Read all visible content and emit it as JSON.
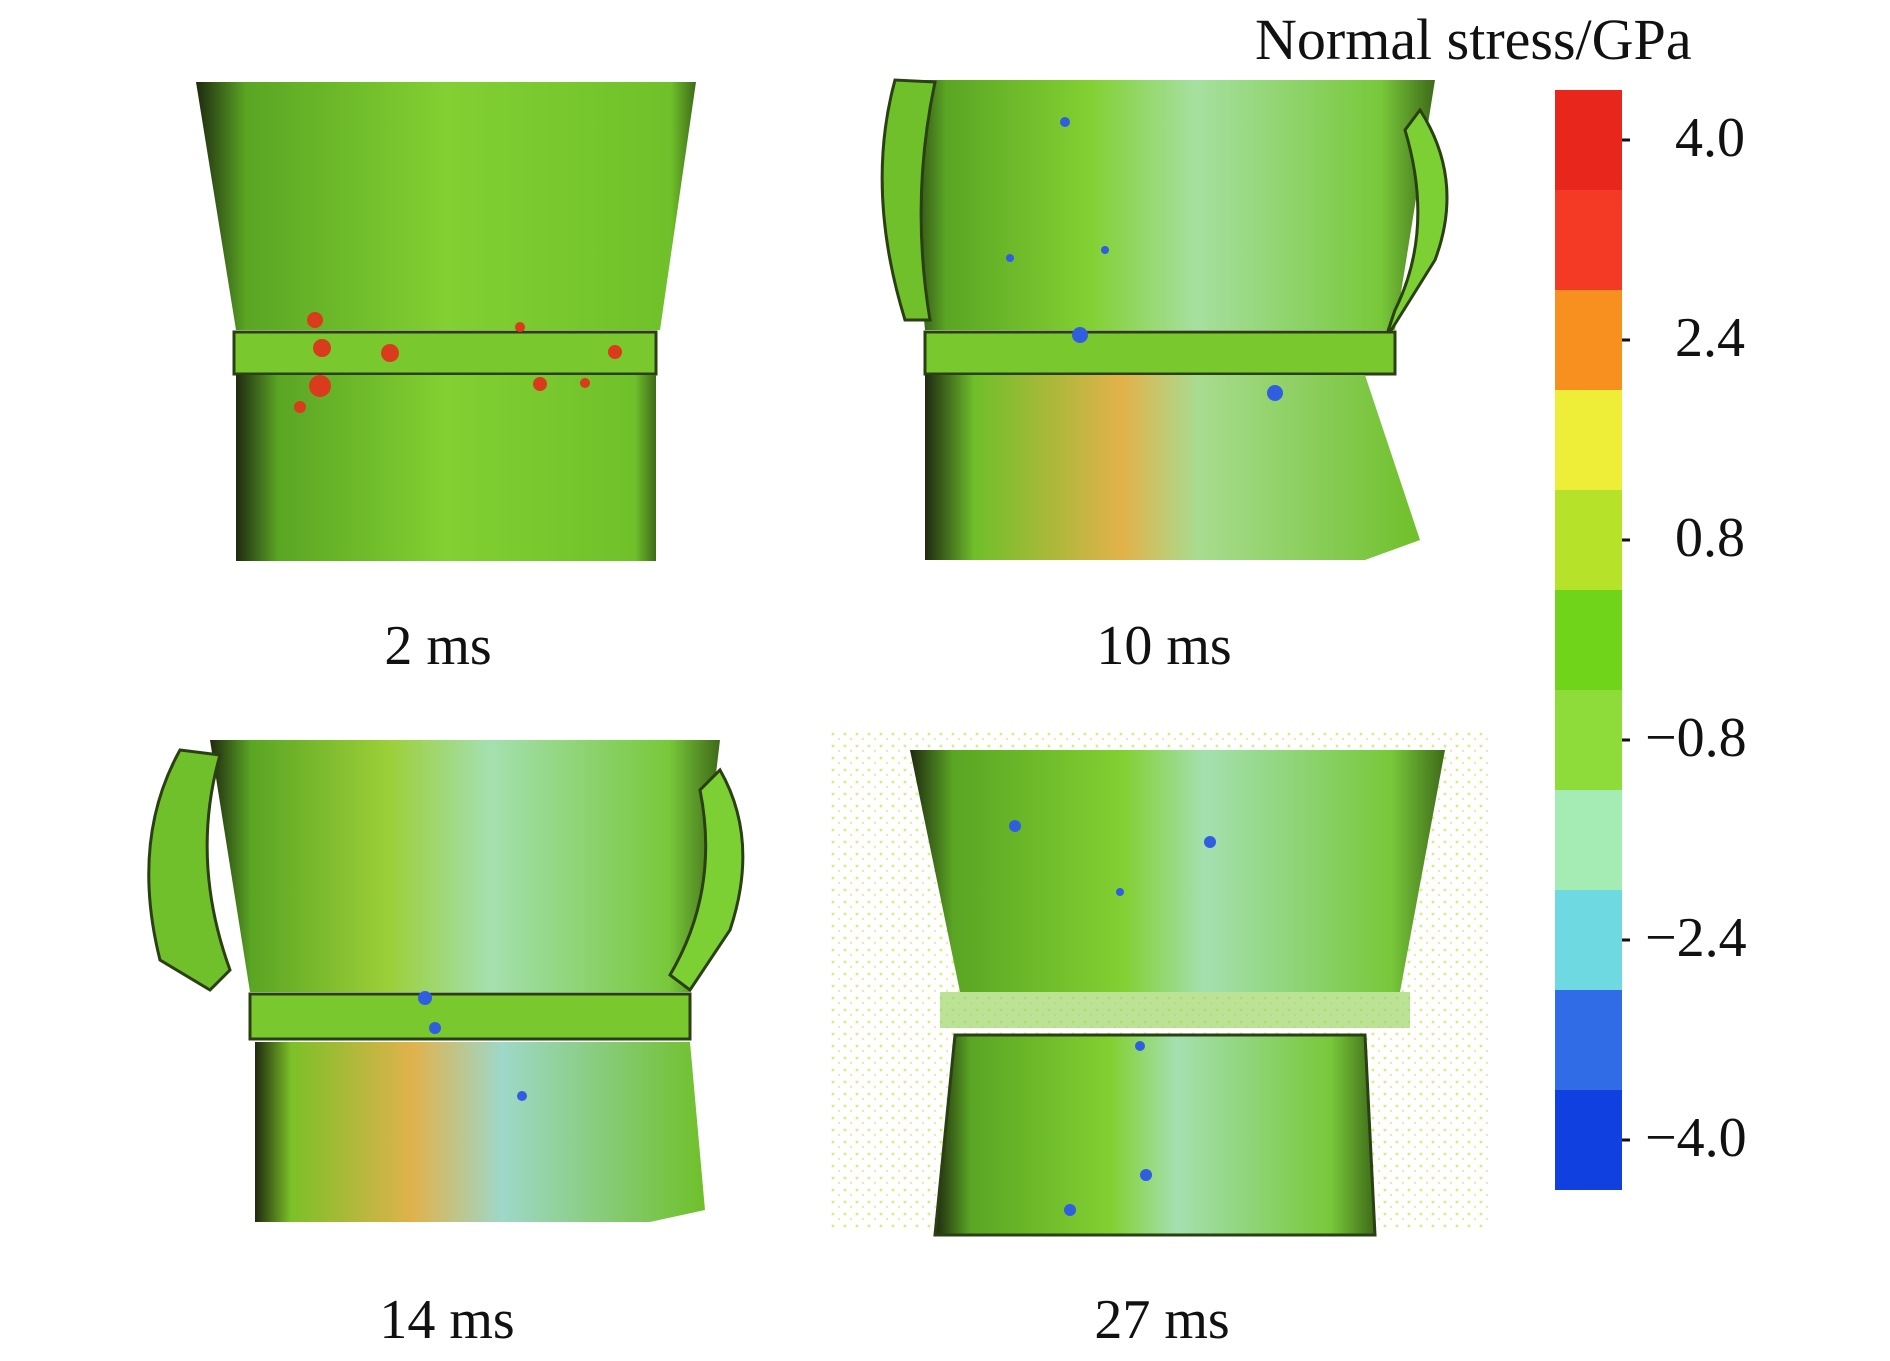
{
  "colorbar": {
    "title": "Normal stress/GPa",
    "tick_labels": [
      "4.0",
      "2.4",
      "0.8",
      "−0.8",
      "−2.4",
      "−4.0"
    ],
    "colors": [
      "#e8261c",
      "#f43a24",
      "#f7901e",
      "#eeee38",
      "#b7e22a",
      "#6fd41a",
      "#8edc3a",
      "#a5ecb4",
      "#6fd9e2",
      "#2f6ce6",
      "#1040e0"
    ]
  },
  "panels": [
    {
      "time_label": "2 ms"
    },
    {
      "time_label": "10 ms"
    },
    {
      "time_label": "14 ms"
    },
    {
      "time_label": "27 ms"
    }
  ],
  "colors": {
    "surface_green": "#7fcf2e",
    "shadow_dark": "#1f2a10",
    "stress_red": "#d93b1c",
    "stress_blue": "#2f5fe0",
    "stress_cyan": "#8fd9c8",
    "stress_orange": "#e39a2a"
  }
}
